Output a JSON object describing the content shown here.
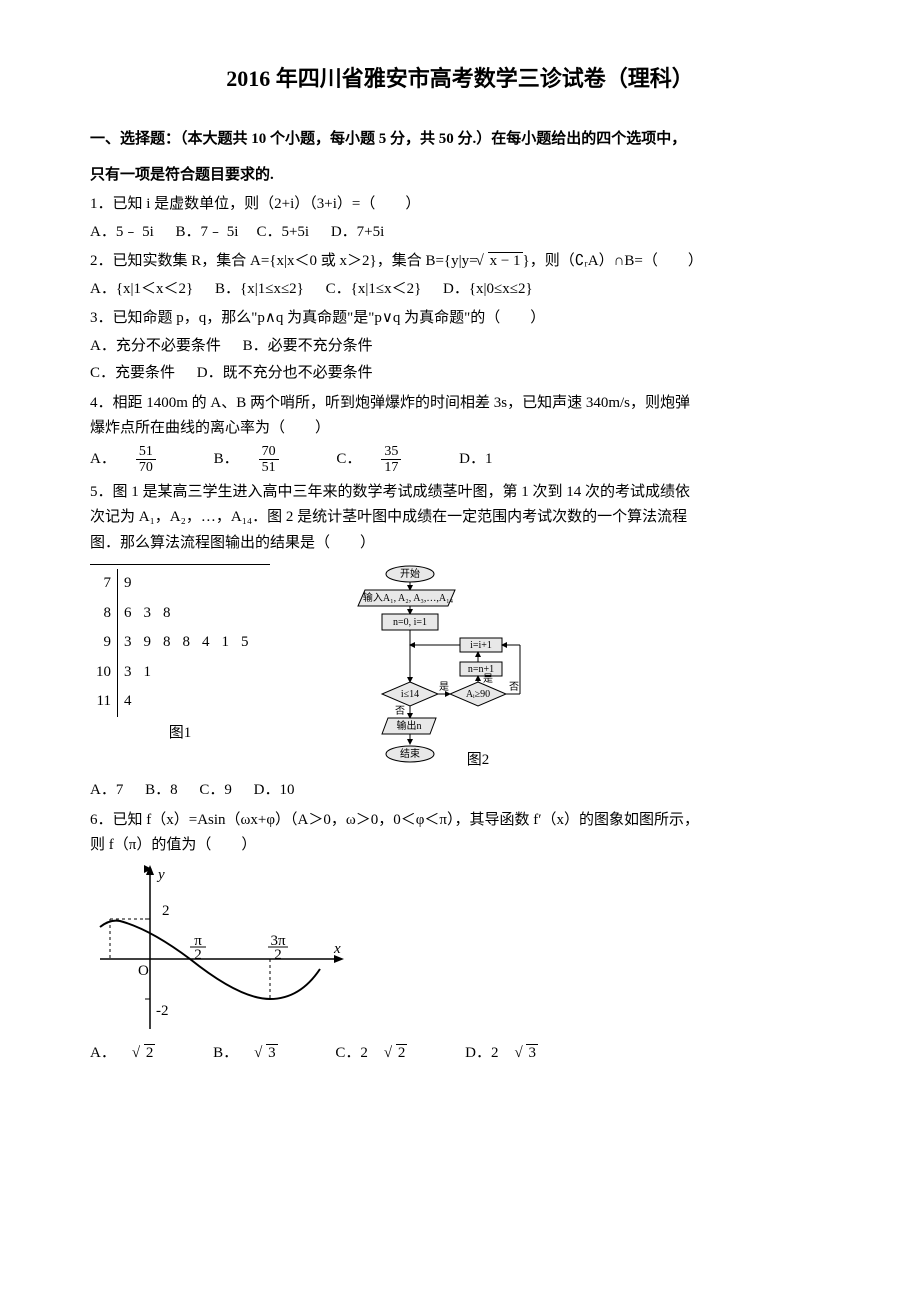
{
  "title": "2016 年四川省雅安市高考数学三诊试卷（理科）",
  "section1_head1": "一、选择题：（本大题共 10 个小题，每小题 5 分，共 50 分.）在每小题给出的四个选项中，",
  "section1_head2": "只有一项是符合题目要求的.",
  "q1": {
    "text": "1．已知 i 是虚数单位，则（2+i）（3+i）=（　　）",
    "A": "A．5﹣ 5i",
    "B": "B．7﹣ 5i",
    "C": "C．5+5i",
    "D": "D．7+5i"
  },
  "q2": {
    "prefix": "2．已知实数集 R，集合 A={x|x＜0 或 x＞2}，集合 B={y|y=",
    "rad": "x − 1",
    "suffix": "}，则（∁ᵣA）∩B=（　　）",
    "A": "A．{x|1＜x＜2}",
    "B": "B．{x|1≤x≤2}",
    "C": "C．{x|1≤x＜2}",
    "D": "D．{x|0≤x≤2}"
  },
  "q3": {
    "text": "3．已知命题 p，q，那么\"p∧q 为真命题\"是\"p∨q 为真命题\"的（　　）",
    "A": "A．充分不必要条件",
    "B": "B．必要不充分条件",
    "C": "C．充要条件",
    "D": "D．既不充分也不必要条件"
  },
  "q4": {
    "l1": "4．相距 1400m 的 A、B 两个哨所，听到炮弹爆炸的时间相差 3s，已知声速 340m/s，则炮弹",
    "l2": "爆炸点所在曲线的离心率为（　　）",
    "A": "A．",
    "Anum": "51",
    "Aden": "70",
    "B": "B．",
    "Bnum": "70",
    "Bden": "51",
    "C": "C．",
    "Cnum": "35",
    "Cden": "17",
    "D": "D．1"
  },
  "q5": {
    "l1": "5．图 1 是某高三学生进入高中三年来的数学考试成绩茎叶图，第 1 次到 14 次的考试成绩依",
    "l2": "次记为 A₁，A₂，…，A₁₄．图 2 是统计茎叶图中成绩在一定范围内考试次数的一个算法流程",
    "l3": "图．那么算法流程图输出的结果是（　　）",
    "stem": {
      "stems": [
        "7",
        "8",
        "9",
        "10",
        "11"
      ],
      "leaves": [
        [
          "9"
        ],
        [
          "6",
          "3",
          "8"
        ],
        [
          "3",
          "9",
          "8",
          "8",
          "4",
          "1",
          "5"
        ],
        [
          "3",
          "1"
        ],
        [
          "4"
        ]
      ]
    },
    "fig1": "图1",
    "fig2": "图2",
    "flow": {
      "start": "开始",
      "input": "输入A₁, A₂, A₃,…,A₁₄",
      "init": "n=0, i=1",
      "inc_i": "i=i+1",
      "inc_n": "n=n+1",
      "cond1": "i≤14",
      "cond2": "Aᵢ≥90",
      "yes": "是",
      "no": "否",
      "out": "输出n",
      "end": "结束"
    },
    "A": "A．7",
    "B": "B．8",
    "C": "C．9",
    "D": "D．10"
  },
  "q6": {
    "l1": "6．已知 f（x）=Asin（ωx+φ）（A＞0，ω＞0，0＜φ＜π），其导函数 f′（x）的图象如图所示，",
    "l2": "则 f（π）的值为（　　）",
    "axis": {
      "x": "x",
      "y": "y",
      "t1": "π",
      "t1den": "2",
      "t2": "3π",
      "t2den": "2",
      "y1": "2",
      "y2": "-2",
      "O": "O"
    },
    "A": "A．",
    "Arad": "2",
    "B": "B．",
    "Brad": "3",
    "C": "C．2",
    "Crad": "2",
    "D": "D．2",
    "Drad": "3"
  }
}
